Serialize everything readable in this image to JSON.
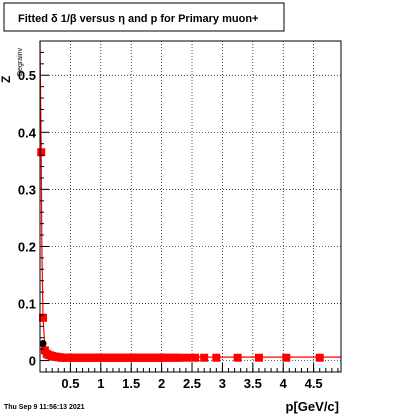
{
  "chart_data": {
    "type": "scatter",
    "title": "Fitted δ 1/β versus η and p for Primary muon+",
    "xlabel": "p[GeV/c]",
    "ylabel": "Z",
    "ylabel_overlay": "Degrainv",
    "timestamp": "Thu Sep  9 11:56:13 2021",
    "xlim": [
      0.0,
      4.95
    ],
    "ylim": [
      -0.02,
      0.56
    ],
    "x_ticks": [
      0.5,
      1.0,
      1.5,
      2.0,
      2.5,
      3.0,
      3.5,
      4.0,
      4.5
    ],
    "x_tick_labels": [
      "0.5",
      "1",
      "1.5",
      "2",
      "2.5",
      "3",
      "3.5",
      "4",
      "4.5"
    ],
    "y_ticks": [
      0.0,
      0.1,
      0.2,
      0.3,
      0.4,
      0.5
    ],
    "y_tick_labels": [
      "0",
      "0.1",
      "0.2",
      "0.3",
      "0.4",
      "0.5"
    ],
    "grid": true,
    "colors": {
      "series": "#ff0000",
      "black_marker": "#000000",
      "frame": "#000000",
      "grid": "#000000"
    },
    "series": [
      {
        "color": "#ff0000",
        "marker": "square",
        "x": [
          0.02,
          0.05,
          0.08,
          0.11,
          0.14,
          0.17,
          0.2,
          0.23,
          0.26,
          0.29,
          0.32,
          0.35,
          0.38,
          0.41,
          0.44,
          0.47,
          0.5,
          0.53,
          0.56,
          0.59,
          0.62,
          0.65,
          0.68,
          0.71,
          0.74,
          0.77,
          0.8,
          0.83,
          0.86,
          0.89,
          0.92,
          0.95,
          0.98,
          1.01,
          1.04,
          1.07,
          1.1,
          1.13,
          1.16,
          1.19,
          1.22,
          1.25,
          1.28,
          1.31,
          1.34,
          1.37,
          1.4,
          1.43,
          1.46,
          1.49,
          1.52,
          1.55,
          1.58,
          1.61,
          1.64,
          1.67,
          1.7,
          1.73,
          1.76,
          1.79,
          1.82,
          1.85,
          1.88,
          1.91,
          1.94,
          1.97,
          2.0,
          2.05,
          2.1,
          2.15,
          2.2,
          2.25,
          2.3,
          2.42,
          2.55,
          2.7,
          2.9,
          3.25,
          3.6,
          4.05,
          4.6
        ],
        "y": [
          0.365,
          0.075,
          0.018,
          0.012,
          0.01,
          0.009,
          0.008,
          0.007,
          0.007,
          0.006,
          0.006,
          0.005,
          0.005,
          0.005,
          0.005,
          0.005,
          0.005,
          0.005,
          0.005,
          0.005,
          0.005,
          0.005,
          0.005,
          0.005,
          0.005,
          0.005,
          0.005,
          0.005,
          0.005,
          0.005,
          0.005,
          0.005,
          0.005,
          0.005,
          0.005,
          0.005,
          0.005,
          0.005,
          0.005,
          0.005,
          0.005,
          0.005,
          0.005,
          0.005,
          0.005,
          0.005,
          0.005,
          0.005,
          0.005,
          0.005,
          0.005,
          0.005,
          0.005,
          0.005,
          0.005,
          0.005,
          0.005,
          0.005,
          0.005,
          0.005,
          0.005,
          0.005,
          0.005,
          0.005,
          0.005,
          0.005,
          0.005,
          0.005,
          0.005,
          0.005,
          0.005,
          0.005,
          0.005,
          0.005,
          0.005,
          0.005,
          0.005,
          0.005,
          0.005,
          0.005,
          0.005
        ]
      },
      {
        "color": "#000000",
        "marker": "circle",
        "x": [
          0.05
        ],
        "y": [
          0.03
        ]
      }
    ],
    "fit_curve": {
      "color": "#ff0000",
      "x": [
        0.0,
        0.02,
        0.03,
        0.05,
        0.08,
        0.12,
        0.2,
        0.3,
        0.5,
        0.8,
        1.2,
        1.8,
        2.5,
        3.5,
        4.5,
        4.95
      ],
      "y": [
        0.56,
        0.365,
        0.2,
        0.075,
        0.025,
        0.014,
        0.009,
        0.007,
        0.006,
        0.006,
        0.006,
        0.006,
        0.006,
        0.006,
        0.006,
        0.006
      ]
    }
  }
}
